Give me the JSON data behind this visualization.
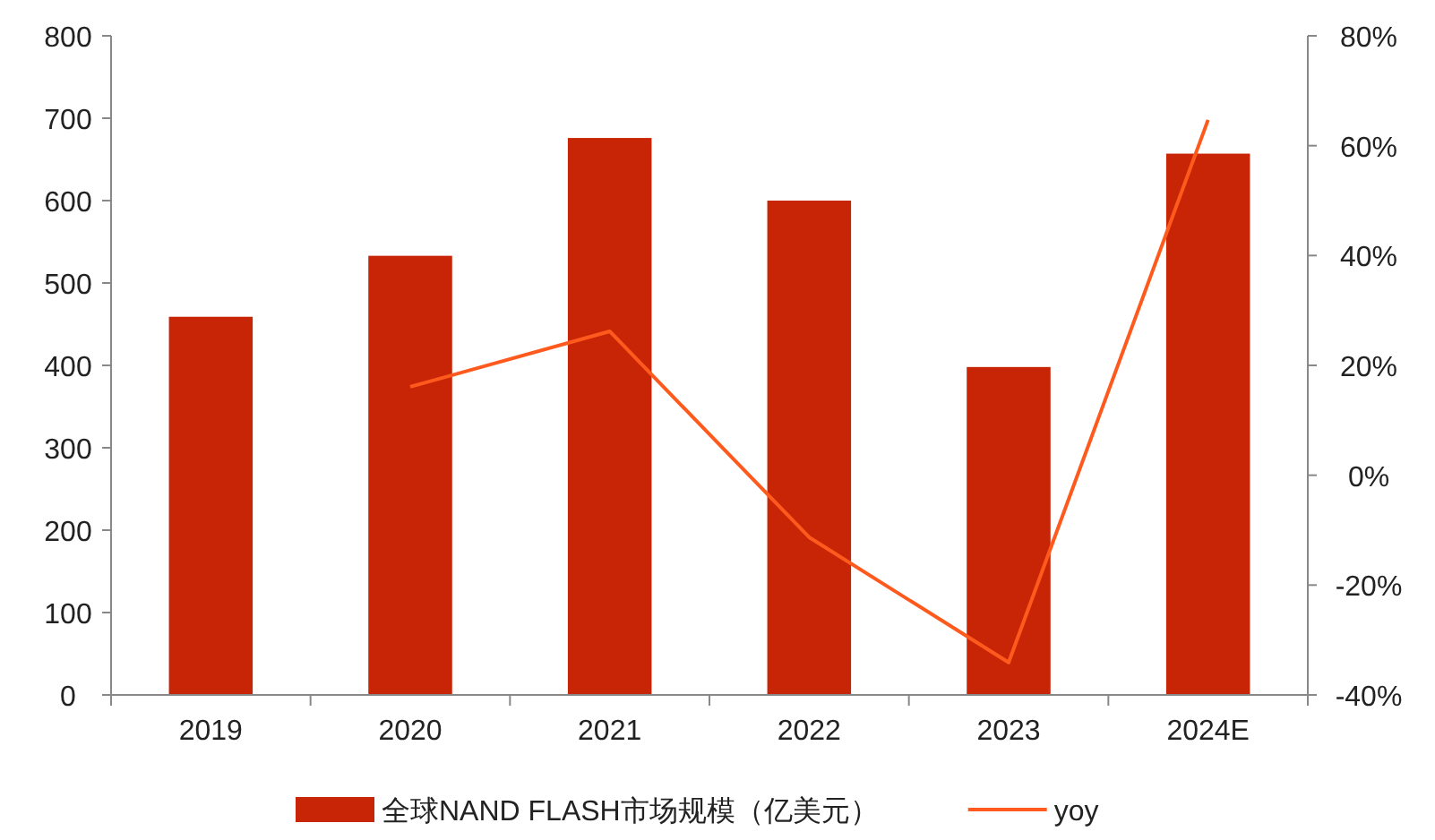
{
  "chart_data": {
    "type": "bar",
    "categories": [
      "2019",
      "2020",
      "2021",
      "2022",
      "2023",
      "2024E"
    ],
    "series": [
      {
        "name": "全球NAND FLASH市场规模（亿美元）",
        "color": "#c82506",
        "values": [
          459,
          533,
          676,
          600,
          398,
          657
        ]
      },
      {
        "name": "yoy",
        "type": "line",
        "axis": "y2",
        "color": "#ff5a1e",
        "values": [
          null,
          16.1,
          26.2,
          -11.3,
          -34.1,
          64.7
        ]
      }
    ],
    "ylim": [
      0,
      800
    ],
    "yticks": [
      0,
      100,
      200,
      300,
      400,
      500,
      600,
      700,
      800
    ],
    "y2lim": [
      -40,
      80
    ],
    "y2ticks": [
      {
        "value": -40,
        "label": "-40%"
      },
      {
        "value": -20,
        "label": "-20%"
      },
      {
        "value": 0,
        "label": "0%"
      },
      {
        "value": 20,
        "label": "20%"
      },
      {
        "value": 40,
        "label": "40%"
      },
      {
        "value": 60,
        "label": "60%"
      },
      {
        "value": 80,
        "label": "80%"
      }
    ],
    "grid": false,
    "legend": "bottom",
    "marker": "none",
    "line_style": "solid"
  }
}
